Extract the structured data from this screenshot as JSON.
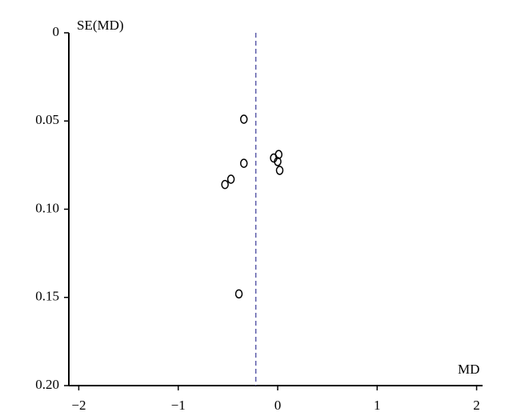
{
  "chart_data": {
    "type": "scatter",
    "x_label": "MD",
    "y_label": "SE(MD)",
    "x": [
      -0.34,
      -0.34,
      -0.47,
      -0.53,
      -0.04,
      0.01,
      0.0,
      0.02,
      -0.39
    ],
    "values": [
      0.049,
      0.074,
      0.083,
      0.086,
      0.071,
      0.069,
      0.073,
      0.078,
      0.148
    ],
    "color": "#000000",
    "xlim": [
      -2.1,
      2.06
    ],
    "xticks": [
      {
        "value": -2,
        "label": "−2"
      },
      {
        "value": -1,
        "label": "−1"
      },
      0,
      1,
      2
    ],
    "ylim": [
      0,
      0.2
    ],
    "yticks": [
      0,
      0.05,
      {
        "value": 0.1,
        "label": "0.10"
      },
      0.15,
      {
        "value": 0.2,
        "label": "0.20"
      }
    ],
    "y_reversed": true,
    "reference_line": -0.22,
    "reference_color": "#5a5aa8"
  }
}
